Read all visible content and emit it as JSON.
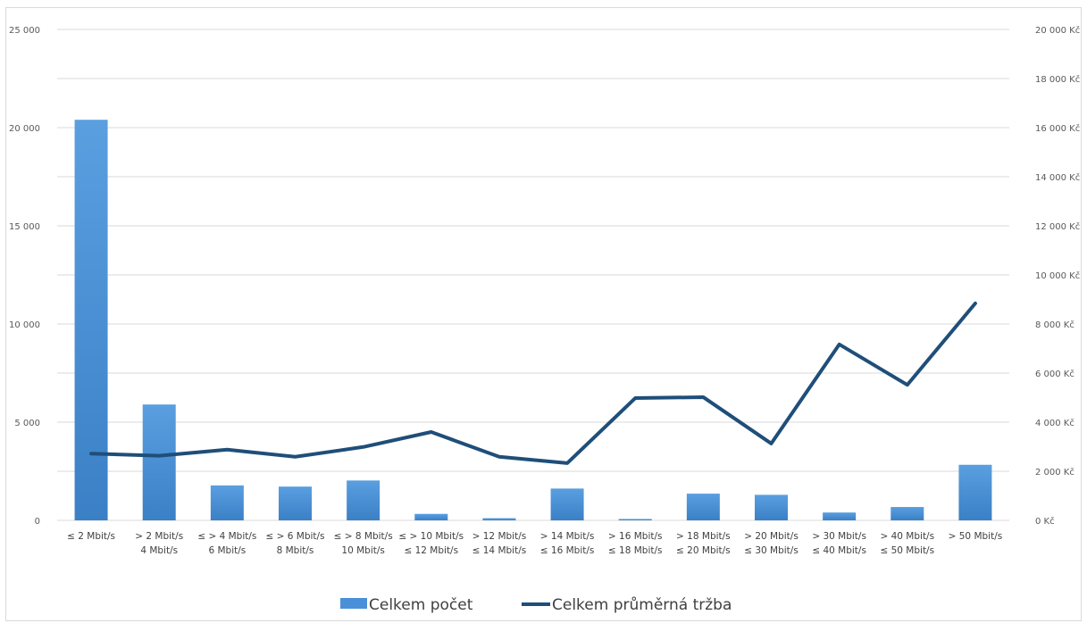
{
  "chart_data": {
    "type": "bar",
    "categories": [
      [
        "≤ 2 Mbit/s",
        ""
      ],
      [
        "> 2 Mbit/s",
        "4 Mbit/s"
      ],
      [
        "≤ > 4 Mbit/s",
        "6 Mbit/s"
      ],
      [
        "≤ > 6 Mbit/s",
        "8 Mbit/s"
      ],
      [
        "≤ > 8 Mbit/s",
        "10 Mbit/s"
      ],
      [
        "≤ > 10 Mbit/s",
        "≤ 12 Mbit/s"
      ],
      [
        "> 12 Mbit/s",
        "≤ 14 Mbit/s"
      ],
      [
        "> 14 Mbit/s",
        "≤ 16 Mbit/s"
      ],
      [
        "> 16 Mbit/s",
        "≤ 18 Mbit/s"
      ],
      [
        "> 18 Mbit/s",
        "≤ 20 Mbit/s"
      ],
      [
        "> 20 Mbit/s",
        "≤ 30 Mbit/s"
      ],
      [
        "> 30 Mbit/s",
        "≤ 40 Mbit/s"
      ],
      [
        "> 40 Mbit/s",
        "≤ 50 Mbit/s"
      ],
      [
        "> 50 Mbit/s",
        ""
      ]
    ],
    "series": [
      {
        "name": "Celkem počet",
        "kind": "bar",
        "axis": "left",
        "color": "#4a90d9",
        "values": [
          20400,
          5900,
          1780,
          1720,
          2030,
          330,
          110,
          1620,
          70,
          1360,
          1300,
          400,
          680,
          2830
        ]
      },
      {
        "name": "Celkem průměrná tržba",
        "kind": "line",
        "axis": "right",
        "color": "#1f4e79",
        "values": [
          2720,
          2630,
          2880,
          2590,
          2990,
          3600,
          2590,
          2330,
          4980,
          5020,
          3130,
          7170,
          5520,
          8840
        ]
      }
    ],
    "y_left": {
      "min": 0,
      "max": 25000,
      "step": 5000,
      "tick_labels": [
        "0",
        "5 000",
        "10 000",
        "15 000",
        "20 000",
        "25 000"
      ]
    },
    "y_right": {
      "min": 0,
      "max": 20000,
      "step": 2000,
      "tick_labels": [
        "0 Kč",
        "2 000 Kč",
        "4 000 Kč",
        "6 000 Kč",
        "8 000 Kč",
        "10 000 Kč",
        "12 000 Kč",
        "14 000 Kč",
        "16 000 Kč",
        "18 000 Kč",
        "20 000 Kč"
      ]
    },
    "grid": true,
    "legend": {
      "position": "bottom",
      "items": [
        "Celkem počet",
        "Celkem průměrná tržba"
      ]
    }
  }
}
